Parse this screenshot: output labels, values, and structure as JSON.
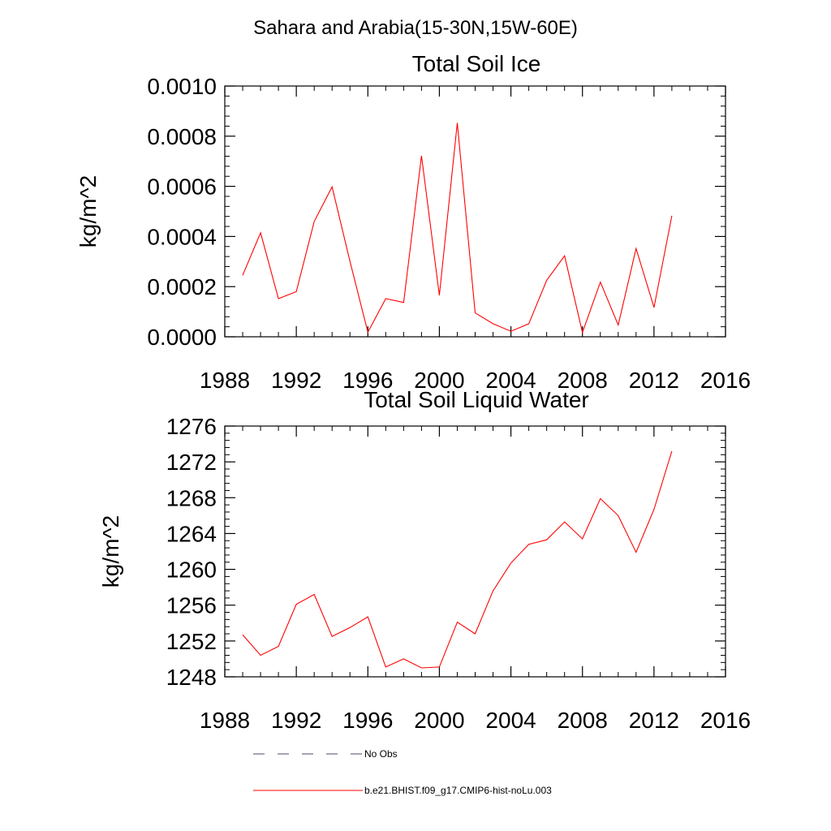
{
  "suptitle": "Sahara and Arabia(15-30N,15W-60E)",
  "chart_data": [
    {
      "type": "line",
      "title": "Total Soil Ice",
      "xlabel": "",
      "ylabel": "kg/m^2",
      "xlim": [
        1988,
        2016
      ],
      "ylim": [
        0,
        0.001
      ],
      "x_ticks": [
        1988,
        1992,
        1996,
        2000,
        2004,
        2008,
        2012,
        2016
      ],
      "x_tick_labels": [
        "1988",
        "1992",
        "1996",
        "2000",
        "2004",
        "2008",
        "2012",
        "2016"
      ],
      "y_ticks": [
        0,
        0.0002,
        0.0004,
        0.0006,
        0.0008,
        0.001
      ],
      "y_tick_labels": [
        "0.0000",
        "0.0002",
        "0.0004",
        "0.0006",
        "0.0008",
        "0.0010"
      ],
      "grid": false,
      "series": [
        {
          "name": "b.e21.BHIST.f09_g17.CMIP6-hist-noLu.003",
          "color": "#ff0000",
          "x": [
            1989,
            1990,
            1991,
            1992,
            1993,
            1994,
            1995,
            1996,
            1997,
            1998,
            1999,
            2000,
            2001,
            2002,
            2003,
            2004,
            2005,
            2006,
            2007,
            2008,
            2009,
            2010,
            2011,
            2012,
            2013
          ],
          "y": [
            0.000245,
            0.000415,
            0.000152,
            0.00018,
            0.00046,
            0.000598,
            0.0003,
            1.8e-05,
            0.000152,
            0.000137,
            0.000722,
            0.000165,
            0.000853,
            9.5e-05,
            5.2e-05,
            2.2e-05,
            5.2e-05,
            0.000225,
            0.000323,
            1.7e-05,
            0.000218,
            4.7e-05,
            0.000352,
            0.000117,
            0.000483
          ]
        }
      ]
    },
    {
      "type": "line",
      "title": "Total Soil Liquid Water",
      "xlabel": "",
      "ylabel": "kg/m^2",
      "xlim": [
        1988,
        2016
      ],
      "ylim": [
        1248,
        1276
      ],
      "x_ticks": [
        1988,
        1992,
        1996,
        2000,
        2004,
        2008,
        2012,
        2016
      ],
      "x_tick_labels": [
        "1988",
        "1992",
        "1996",
        "2000",
        "2004",
        "2008",
        "2012",
        "2016"
      ],
      "y_ticks": [
        1248,
        1252,
        1256,
        1260,
        1264,
        1268,
        1272,
        1276
      ],
      "y_tick_labels": [
        "1248",
        "1252",
        "1256",
        "1260",
        "1264",
        "1268",
        "1272",
        "1276"
      ],
      "grid": false,
      "series": [
        {
          "name": "b.e21.BHIST.f09_g17.CMIP6-hist-noLu.003",
          "color": "#ff0000",
          "x": [
            1989,
            1990,
            1991,
            1992,
            1993,
            1994,
            1995,
            1996,
            1997,
            1998,
            1999,
            2000,
            2001,
            2002,
            2003,
            2004,
            2005,
            2006,
            2007,
            2008,
            2009,
            2010,
            2011,
            2012,
            2013
          ],
          "y": [
            1252.7,
            1250.4,
            1251.4,
            1256.1,
            1257.2,
            1252.5,
            1253.5,
            1254.7,
            1249.1,
            1250.0,
            1249.0,
            1249.1,
            1254.1,
            1252.8,
            1257.6,
            1260.7,
            1262.8,
            1263.3,
            1265.3,
            1263.4,
            1267.9,
            1266.0,
            1261.9,
            1266.7,
            1273.2
          ]
        }
      ]
    }
  ],
  "legend": {
    "placement": "bottom",
    "entries": [
      {
        "label": "No Obs",
        "style": "dashed",
        "color": "#4a4a6a"
      },
      {
        "label": "b.e21.BHIST.f09_g17.CMIP6-hist-noLu.003",
        "style": "solid",
        "color": "#ff0000"
      }
    ]
  }
}
